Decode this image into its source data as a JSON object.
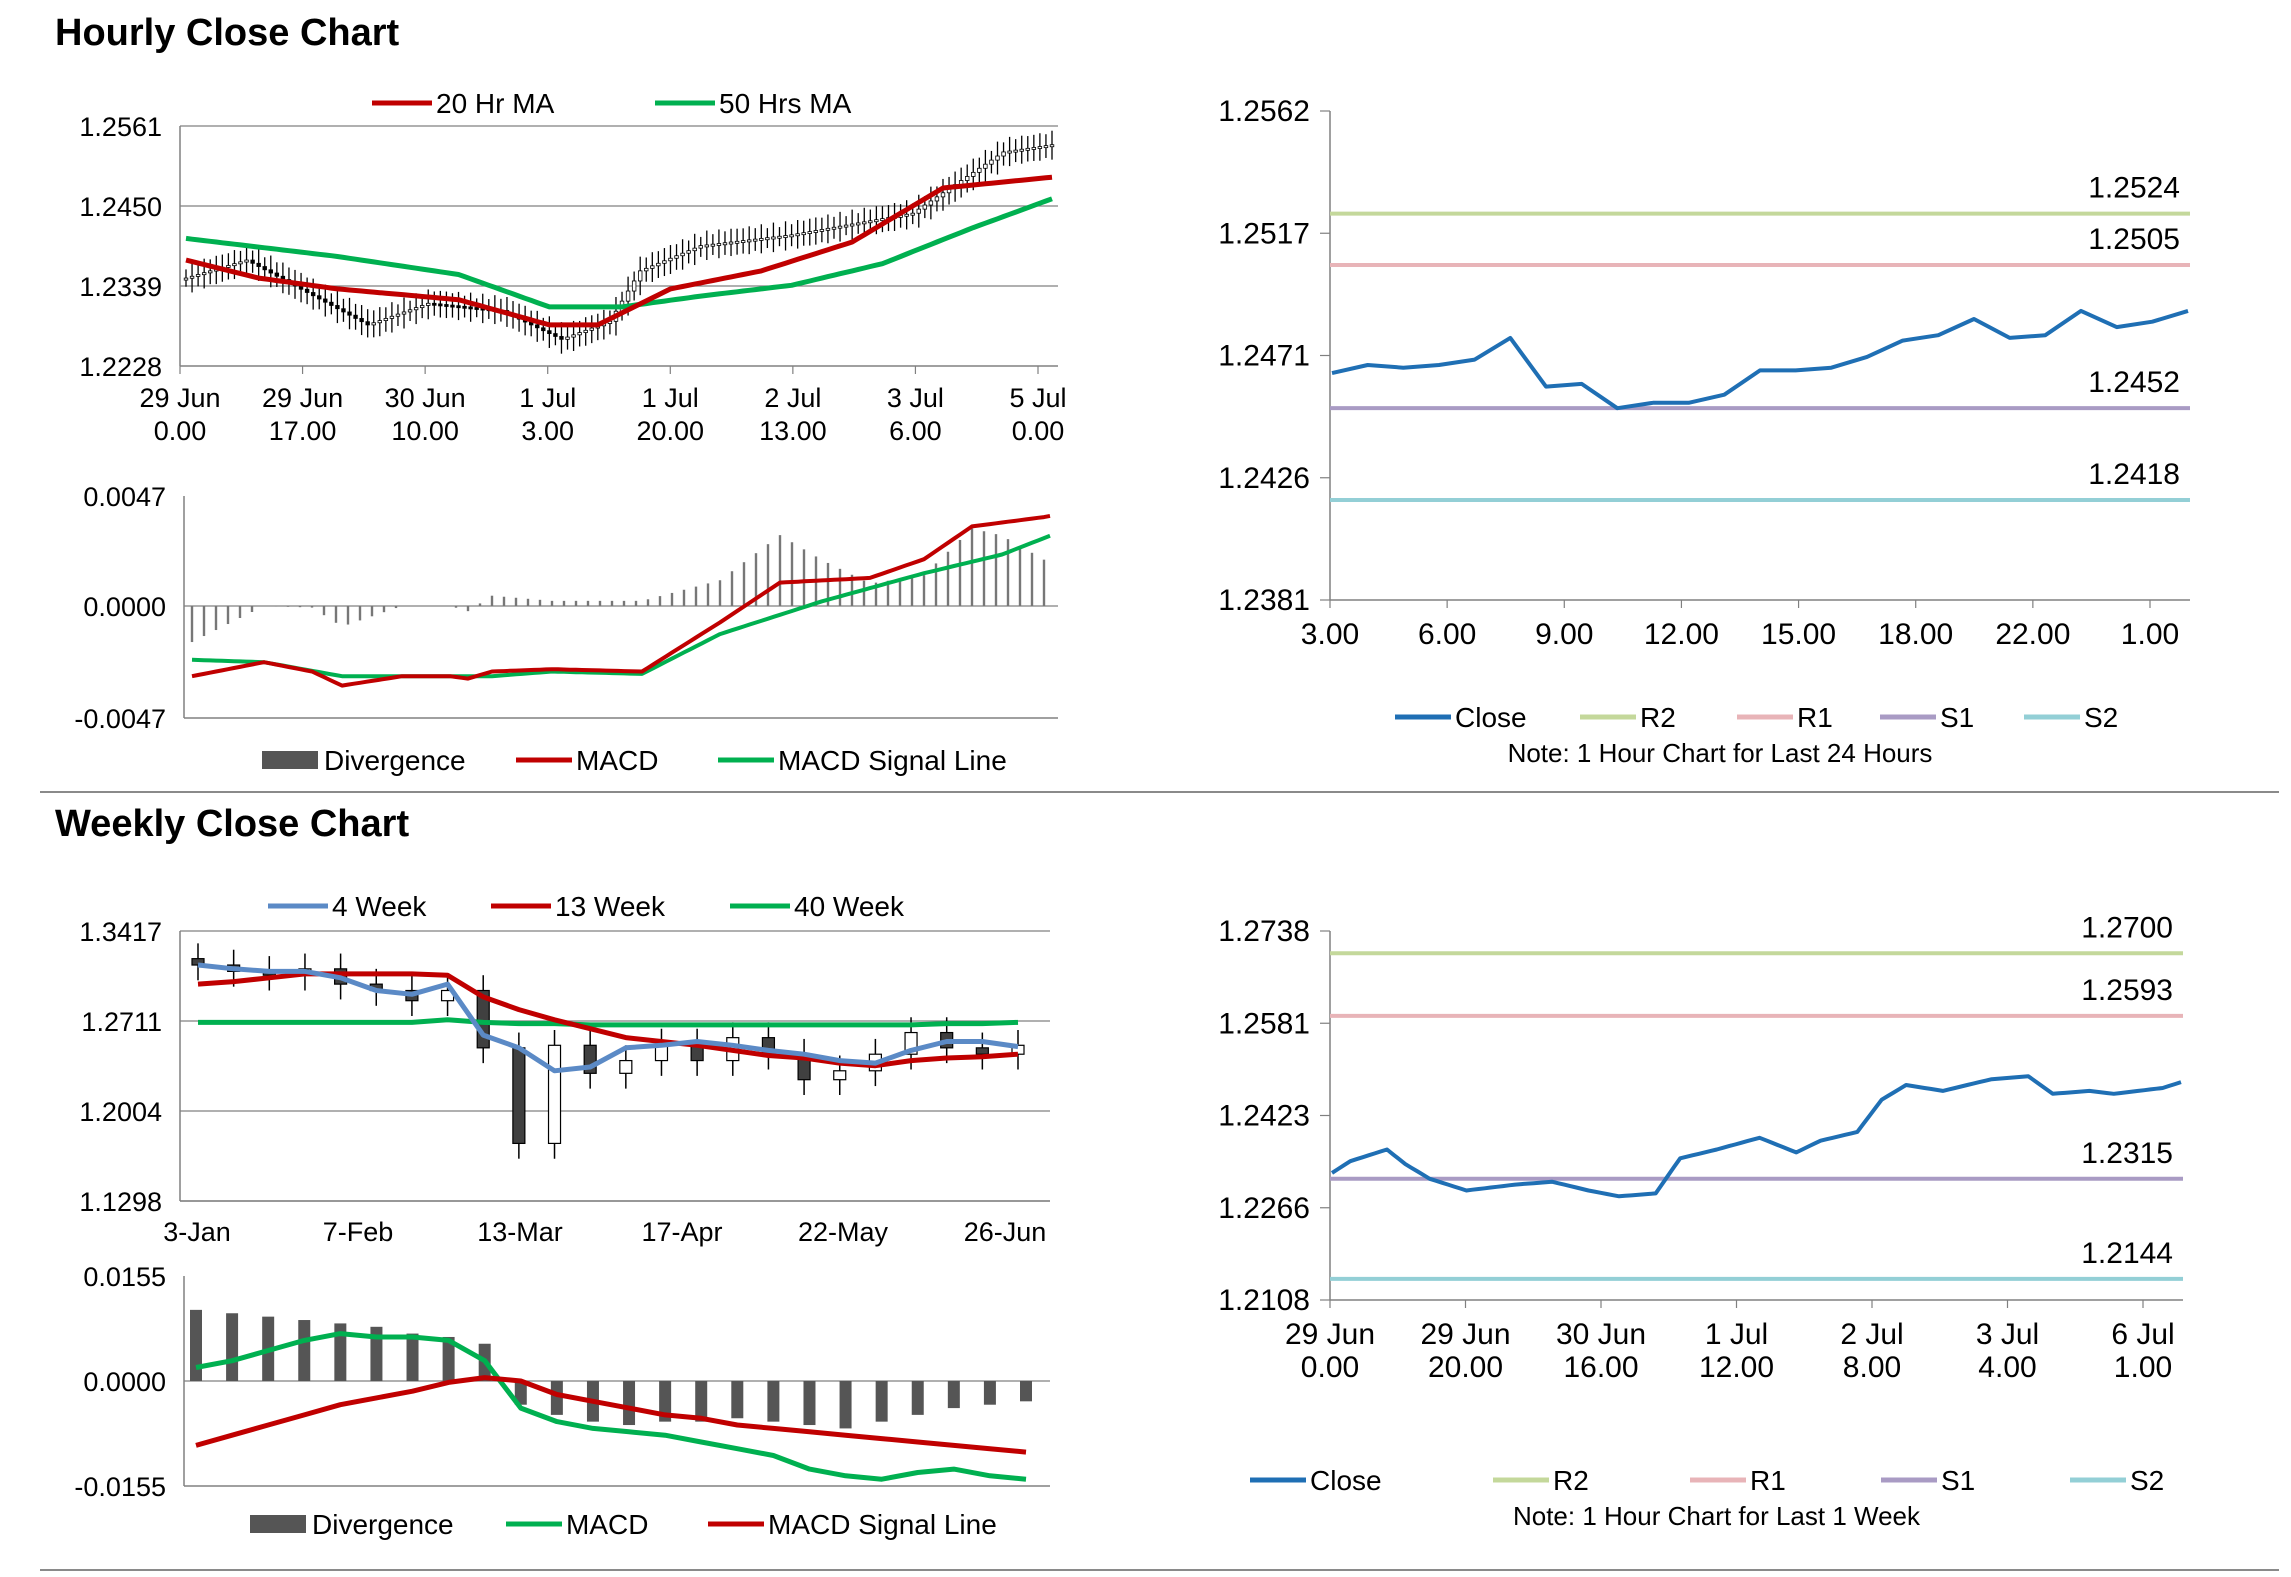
{
  "sections": {
    "hourly_title": "Hourly Close Chart",
    "weekly_title": "Weekly Close Chart"
  },
  "colors": {
    "ma_red": "#c00000",
    "ma_green": "#00b050",
    "ma_blue": "#5b8ac6",
    "close": "#1f6fb4",
    "r2": "#c4d89b",
    "r1": "#e8b4b8",
    "s1": "#a99bc4",
    "s2": "#93cfd6",
    "divergence": "#555555",
    "candle": "#000000"
  },
  "chart_data": [
    {
      "id": "hourly_price",
      "type": "candlestick",
      "x_ticks": [
        "29 Jun\n0.00",
        "29 Jun\n17.00",
        "30 Jun\n10.00",
        "1 Jul\n3.00",
        "1 Jul\n20.00",
        "2 Jul\n13.00",
        "3 Jul\n6.00",
        "5 Jul\n0.00"
      ],
      "y_ticks": [
        "1.2561",
        "1.2450",
        "1.2339",
        "1.2228"
      ],
      "ylim": [
        1.2228,
        1.2561
      ],
      "legend": [
        "20 Hr MA",
        "50 Hrs MA"
      ],
      "n": 144,
      "close_anchors": [
        [
          0,
          1.235
        ],
        [
          10,
          1.2375
        ],
        [
          20,
          1.233
        ],
        [
          30,
          1.2285
        ],
        [
          40,
          1.2315
        ],
        [
          52,
          1.2305
        ],
        [
          62,
          1.2265
        ],
        [
          70,
          1.229
        ],
        [
          75,
          1.236
        ],
        [
          85,
          1.2395
        ],
        [
          100,
          1.241
        ],
        [
          120,
          1.244
        ],
        [
          135,
          1.2525
        ],
        [
          143,
          1.2535
        ]
      ],
      "ma20_anchors": [
        [
          0,
          1.2375
        ],
        [
          12,
          1.235
        ],
        [
          25,
          1.2335
        ],
        [
          45,
          1.232
        ],
        [
          60,
          1.2285
        ],
        [
          68,
          1.2285
        ],
        [
          80,
          1.2335
        ],
        [
          95,
          1.236
        ],
        [
          110,
          1.24
        ],
        [
          125,
          1.2475
        ],
        [
          143,
          1.249
        ]
      ],
      "ma50_anchors": [
        [
          0,
          1.2405
        ],
        [
          25,
          1.238
        ],
        [
          45,
          1.2355
        ],
        [
          60,
          1.231
        ],
        [
          72,
          1.231
        ],
        [
          85,
          1.2325
        ],
        [
          100,
          1.234
        ],
        [
          115,
          1.237
        ],
        [
          130,
          1.242
        ],
        [
          143,
          1.246
        ]
      ]
    },
    {
      "id": "hourly_macd",
      "type": "macd",
      "y_ticks": [
        "0.0047",
        "0.0000",
        "-0.0047"
      ],
      "ylim": [
        -0.0047,
        0.0047
      ],
      "legend": [
        "Divergence",
        "MACD",
        "MACD Signal Line"
      ],
      "macd_anchors": [
        [
          0,
          -0.003
        ],
        [
          12,
          -0.0024
        ],
        [
          20,
          -0.0028
        ],
        [
          25,
          -0.0034
        ],
        [
          35,
          -0.003
        ],
        [
          43,
          -0.003
        ],
        [
          46,
          -0.0031
        ],
        [
          50,
          -0.0028
        ],
        [
          60,
          -0.0027
        ],
        [
          75,
          -0.0028
        ],
        [
          88,
          -0.0007
        ],
        [
          98,
          0.001
        ],
        [
          113,
          0.0012
        ],
        [
          122,
          0.002
        ],
        [
          130,
          0.0034
        ],
        [
          142,
          0.0038
        ]
      ],
      "signal_anchors": [
        [
          0,
          -0.0023
        ],
        [
          12,
          -0.0024
        ],
        [
          25,
          -0.003
        ],
        [
          43,
          -0.003
        ],
        [
          50,
          -0.003
        ],
        [
          60,
          -0.0028
        ],
        [
          75,
          -0.0029
        ],
        [
          88,
          -0.0012
        ],
        [
          105,
          0.0002
        ],
        [
          122,
          0.0014
        ],
        [
          135,
          0.0022
        ],
        [
          143,
          0.003
        ]
      ]
    },
    {
      "id": "hourly_24h",
      "type": "line",
      "x_ticks": [
        "3.00",
        "6.00",
        "9.00",
        "12.00",
        "15.00",
        "18.00",
        "22.00",
        "1.00"
      ],
      "y_ticks": [
        "1.2562",
        "1.2517",
        "1.2471",
        "1.2426",
        "1.2381"
      ],
      "ylim": [
        1.2381,
        1.2562
      ],
      "levels": {
        "R2": "1.2524",
        "R1": "1.2505",
        "S1": "1.2452",
        "S2": "1.2418"
      },
      "close": [
        1.2465,
        1.2468,
        1.2467,
        1.2468,
        1.247,
        1.2478,
        1.246,
        1.2461,
        1.2452,
        1.2454,
        1.2454,
        1.2457,
        1.2466,
        1.2466,
        1.2467,
        1.2471,
        1.2477,
        1.2479,
        1.2485,
        1.2478,
        1.2479,
        1.2488,
        1.2482,
        1.2484,
        1.2488
      ],
      "legend": [
        "Close",
        "R2",
        "R1",
        "S1",
        "S2"
      ],
      "note": "Note: 1 Hour Chart for Last 24 Hours"
    },
    {
      "id": "weekly_price",
      "type": "candlestick",
      "x_ticks": [
        "3-Jan",
        "7-Feb",
        "13-Mar",
        "17-Apr",
        "22-May",
        "26-Jun"
      ],
      "y_ticks": [
        "1.3417",
        "1.2711",
        "1.2004",
        "1.1298"
      ],
      "ylim": [
        1.1298,
        1.3417
      ],
      "legend": [
        "4 Week",
        "13 Week",
        "40 Week"
      ],
      "close": [
        1.315,
        1.31,
        1.307,
        1.312,
        1.3,
        1.295,
        1.287,
        1.295,
        1.25,
        1.175,
        1.252,
        1.23,
        1.24,
        1.253,
        1.24,
        1.258,
        1.245,
        1.225,
        1.232,
        1.245,
        1.262,
        1.25,
        1.245,
        1.252
      ],
      "wk4": [
        1.315,
        1.312,
        1.31,
        1.31,
        1.305,
        1.295,
        1.292,
        1.3,
        1.26,
        1.25,
        1.232,
        1.235,
        1.25,
        1.252,
        1.255,
        1.252,
        1.248,
        1.245,
        1.24,
        1.238,
        1.248,
        1.255,
        1.255,
        1.251
      ],
      "wk13": [
        1.3,
        1.302,
        1.305,
        1.308,
        1.308,
        1.308,
        1.308,
        1.307,
        1.29,
        1.28,
        1.272,
        1.265,
        1.258,
        1.255,
        1.252,
        1.248,
        1.244,
        1.242,
        1.238,
        1.236,
        1.24,
        1.242,
        1.243,
        1.245
      ],
      "wk40": [
        1.27,
        1.27,
        1.27,
        1.27,
        1.27,
        1.27,
        1.27,
        1.272,
        1.27,
        1.269,
        1.269,
        1.268,
        1.268,
        1.268,
        1.268,
        1.268,
        1.268,
        1.268,
        1.268,
        1.268,
        1.268,
        1.269,
        1.269,
        1.27
      ]
    },
    {
      "id": "weekly_macd",
      "type": "macd",
      "y_ticks": [
        "0.0155",
        "0.0000",
        "-0.0155"
      ],
      "ylim": [
        -0.0155,
        0.0155
      ],
      "legend": [
        "Divergence",
        "MACD",
        "MACD Signal Line"
      ],
      "divergence": [
        0.0105,
        0.01,
        0.0095,
        0.009,
        0.0085,
        0.008,
        0.007,
        0.0065,
        0.0055,
        -0.0035,
        -0.005,
        -0.006,
        -0.0065,
        -0.006,
        -0.006,
        -0.0055,
        -0.006,
        -0.0065,
        -0.007,
        -0.006,
        -0.005,
        -0.004,
        -0.0035,
        -0.003
      ],
      "macd": [
        0.002,
        0.003,
        0.0045,
        0.006,
        0.007,
        0.0065,
        0.0065,
        0.006,
        0.003,
        -0.004,
        -0.006,
        -0.007,
        -0.0075,
        -0.008,
        -0.009,
        -0.01,
        -0.011,
        -0.013,
        -0.014,
        -0.0145,
        -0.0135,
        -0.013,
        -0.014,
        -0.0145
      ],
      "signal": [
        -0.0095,
        -0.008,
        -0.0065,
        -0.005,
        -0.0035,
        -0.0025,
        -0.0015,
        -0.0002,
        0.0005,
        0.0,
        -0.002,
        -0.003,
        -0.004,
        -0.005,
        -0.0055,
        -0.0065,
        -0.007,
        -0.0075,
        -0.008,
        -0.0085,
        -0.009,
        -0.0095,
        -0.01,
        -0.0105
      ]
    },
    {
      "id": "weekly_1w",
      "type": "line",
      "x_ticks": [
        "29 Jun\n0.00",
        "29 Jun\n20.00",
        "30 Jun\n16.00",
        "1 Jul\n12.00",
        "2 Jul\n8.00",
        "3 Jul\n4.00",
        "6 Jul\n1.00"
      ],
      "y_ticks": [
        "1.2738",
        "1.2581",
        "1.2423",
        "1.2266",
        "1.2108"
      ],
      "ylim": [
        1.2108,
        1.2738
      ],
      "levels": {
        "R2": "1.2700",
        "R1": "1.2593",
        "S1": "1.2315",
        "S2": "1.2144"
      },
      "n": 140,
      "close_anchors": [
        [
          0,
          1.2325
        ],
        [
          3,
          1.2345
        ],
        [
          9,
          1.2365
        ],
        [
          12,
          1.234
        ],
        [
          16,
          1.2315
        ],
        [
          22,
          1.2295
        ],
        [
          26,
          1.23
        ],
        [
          30,
          1.2305
        ],
        [
          36,
          1.231
        ],
        [
          42,
          1.2295
        ],
        [
          47,
          1.2285
        ],
        [
          53,
          1.229
        ],
        [
          57,
          1.235
        ],
        [
          63,
          1.2365
        ],
        [
          70,
          1.2385
        ],
        [
          76,
          1.236
        ],
        [
          80,
          1.238
        ],
        [
          86,
          1.2395
        ],
        [
          90,
          1.245
        ],
        [
          94,
          1.2475
        ],
        [
          100,
          1.2465
        ],
        [
          108,
          1.2485
        ],
        [
          114,
          1.249
        ],
        [
          118,
          1.246
        ],
        [
          124,
          1.2465
        ],
        [
          128,
          1.246
        ],
        [
          132,
          1.2465
        ],
        [
          136,
          1.247
        ],
        [
          139,
          1.248
        ]
      ],
      "legend": [
        "Close",
        "R2",
        "R1",
        "S1",
        "S2"
      ],
      "note": "Note: 1 Hour Chart for Last 1 Week"
    }
  ]
}
